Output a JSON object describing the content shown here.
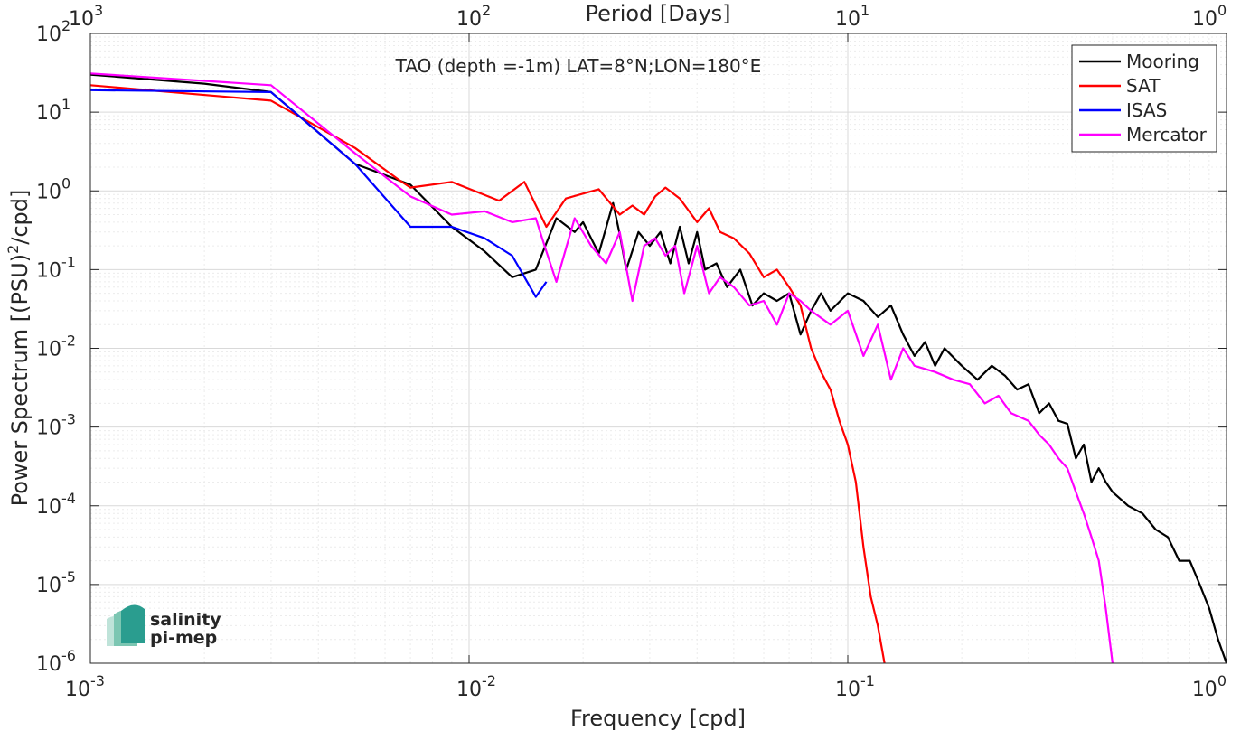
{
  "chart_data": {
    "type": "line",
    "title": "TAO (depth =-1m) LAT=8°N;LON=180°E",
    "xlabel": "Frequency [cpd]",
    "ylabel": "Power Spectrum [(PSU)",
    "ylabel_sup": "2",
    "ylabel_tail": "/cpd]",
    "top_xlabel": "Period [Days]",
    "xscale": "log",
    "yscale": "log",
    "xlim": [
      0.001,
      1
    ],
    "ylim": [
      1e-06,
      100
    ],
    "grid": true,
    "legend_position": "top-right",
    "x_ticks": [
      {
        "value": 0.001,
        "base": "10",
        "exp": "-3"
      },
      {
        "value": 0.01,
        "base": "10",
        "exp": "-2"
      },
      {
        "value": 0.1,
        "base": "10",
        "exp": "-1"
      },
      {
        "value": 1,
        "base": "10",
        "exp": "0"
      }
    ],
    "top_x_ticks": [
      {
        "value": 0.001,
        "base": "10",
        "exp": "3"
      },
      {
        "value": 0.01,
        "base": "10",
        "exp": "2"
      },
      {
        "value": 0.1,
        "base": "10",
        "exp": "1"
      },
      {
        "value": 1,
        "base": "10",
        "exp": "0"
      }
    ],
    "y_ticks": [
      {
        "value": 100,
        "base": "10",
        "exp": "2"
      },
      {
        "value": 10,
        "base": "10",
        "exp": "1"
      },
      {
        "value": 1,
        "base": "10",
        "exp": "0"
      },
      {
        "value": 0.1,
        "base": "10",
        "exp": "-1"
      },
      {
        "value": 0.01,
        "base": "10",
        "exp": "-2"
      },
      {
        "value": 0.001,
        "base": "10",
        "exp": "-3"
      },
      {
        "value": 0.0001,
        "base": "10",
        "exp": "-4"
      },
      {
        "value": 1e-05,
        "base": "10",
        "exp": "-5"
      },
      {
        "value": 1e-06,
        "base": "10",
        "exp": "-6"
      }
    ],
    "series": [
      {
        "name": "Mooring",
        "color": "#000000",
        "points": [
          [
            0.001,
            30
          ],
          [
            0.002,
            23
          ],
          [
            0.003,
            18
          ],
          [
            0.005,
            2.2
          ],
          [
            0.007,
            1.2
          ],
          [
            0.009,
            0.35
          ],
          [
            0.011,
            0.17
          ],
          [
            0.013,
            0.08
          ],
          [
            0.015,
            0.1
          ],
          [
            0.017,
            0.45
          ],
          [
            0.019,
            0.3
          ],
          [
            0.02,
            0.4
          ],
          [
            0.022,
            0.16
          ],
          [
            0.024,
            0.7
          ],
          [
            0.025,
            0.28
          ],
          [
            0.026,
            0.1
          ],
          [
            0.028,
            0.3
          ],
          [
            0.03,
            0.2
          ],
          [
            0.032,
            0.3
          ],
          [
            0.034,
            0.12
          ],
          [
            0.036,
            0.35
          ],
          [
            0.038,
            0.12
          ],
          [
            0.04,
            0.3
          ],
          [
            0.042,
            0.1
          ],
          [
            0.045,
            0.12
          ],
          [
            0.048,
            0.06
          ],
          [
            0.052,
            0.1
          ],
          [
            0.056,
            0.035
          ],
          [
            0.06,
            0.05
          ],
          [
            0.065,
            0.04
          ],
          [
            0.07,
            0.05
          ],
          [
            0.075,
            0.015
          ],
          [
            0.08,
            0.03
          ],
          [
            0.085,
            0.05
          ],
          [
            0.09,
            0.03
          ],
          [
            0.1,
            0.05
          ],
          [
            0.11,
            0.04
          ],
          [
            0.12,
            0.025
          ],
          [
            0.13,
            0.035
          ],
          [
            0.14,
            0.015
          ],
          [
            0.15,
            0.008
          ],
          [
            0.16,
            0.012
          ],
          [
            0.17,
            0.006
          ],
          [
            0.18,
            0.01
          ],
          [
            0.2,
            0.006
          ],
          [
            0.22,
            0.004
          ],
          [
            0.24,
            0.006
          ],
          [
            0.26,
            0.0045
          ],
          [
            0.28,
            0.003
          ],
          [
            0.3,
            0.0035
          ],
          [
            0.32,
            0.0015
          ],
          [
            0.34,
            0.002
          ],
          [
            0.36,
            0.0012
          ],
          [
            0.38,
            0.0011
          ],
          [
            0.4,
            0.0004
          ],
          [
            0.42,
            0.0006
          ],
          [
            0.44,
            0.0002
          ],
          [
            0.46,
            0.0003
          ],
          [
            0.48,
            0.0002
          ],
          [
            0.5,
            0.00015
          ],
          [
            0.55,
            0.0001
          ],
          [
            0.6,
            8e-05
          ],
          [
            0.65,
            5e-05
          ],
          [
            0.7,
            4e-05
          ],
          [
            0.75,
            2e-05
          ],
          [
            0.8,
            2e-05
          ],
          [
            0.85,
            1e-05
          ],
          [
            0.9,
            5e-06
          ],
          [
            0.95,
            2e-06
          ],
          [
            1.0,
            1e-06
          ]
        ]
      },
      {
        "name": "SAT",
        "color": "#ff0000",
        "points": [
          [
            0.001,
            22
          ],
          [
            0.003,
            14
          ],
          [
            0.005,
            3.5
          ],
          [
            0.0065,
            1.4
          ],
          [
            0.007,
            1.1
          ],
          [
            0.009,
            1.3
          ],
          [
            0.012,
            0.75
          ],
          [
            0.014,
            1.3
          ],
          [
            0.016,
            0.35
          ],
          [
            0.018,
            0.8
          ],
          [
            0.022,
            1.05
          ],
          [
            0.025,
            0.5
          ],
          [
            0.027,
            0.65
          ],
          [
            0.029,
            0.5
          ],
          [
            0.031,
            0.85
          ],
          [
            0.033,
            1.1
          ],
          [
            0.036,
            0.8
          ],
          [
            0.04,
            0.4
          ],
          [
            0.043,
            0.6
          ],
          [
            0.046,
            0.3
          ],
          [
            0.05,
            0.25
          ],
          [
            0.055,
            0.16
          ],
          [
            0.06,
            0.08
          ],
          [
            0.065,
            0.1
          ],
          [
            0.07,
            0.06
          ],
          [
            0.075,
            0.035
          ],
          [
            0.08,
            0.01
          ],
          [
            0.085,
            0.005
          ],
          [
            0.09,
            0.003
          ],
          [
            0.095,
            0.0012
          ],
          [
            0.1,
            0.0006
          ],
          [
            0.105,
            0.0002
          ],
          [
            0.11,
            3e-05
          ],
          [
            0.115,
            7e-06
          ],
          [
            0.12,
            3e-06
          ],
          [
            0.125,
            1e-06
          ]
        ]
      },
      {
        "name": "ISAS",
        "color": "#0000ff",
        "points": [
          [
            0.001,
            19
          ],
          [
            0.003,
            18
          ],
          [
            0.005,
            2.2
          ],
          [
            0.007,
            0.35
          ],
          [
            0.009,
            0.35
          ],
          [
            0.011,
            0.25
          ],
          [
            0.013,
            0.15
          ],
          [
            0.015,
            0.045
          ],
          [
            0.016,
            0.07
          ]
        ]
      },
      {
        "name": "Mercator",
        "color": "#ff00ff",
        "points": [
          [
            0.001,
            31
          ],
          [
            0.003,
            22
          ],
          [
            0.005,
            3
          ],
          [
            0.007,
            0.85
          ],
          [
            0.009,
            0.5
          ],
          [
            0.011,
            0.55
          ],
          [
            0.013,
            0.4
          ],
          [
            0.015,
            0.45
          ],
          [
            0.016,
            0.17
          ],
          [
            0.017,
            0.07
          ],
          [
            0.019,
            0.45
          ],
          [
            0.021,
            0.2
          ],
          [
            0.023,
            0.12
          ],
          [
            0.025,
            0.3
          ],
          [
            0.027,
            0.04
          ],
          [
            0.029,
            0.2
          ],
          [
            0.031,
            0.25
          ],
          [
            0.033,
            0.15
          ],
          [
            0.035,
            0.2
          ],
          [
            0.037,
            0.05
          ],
          [
            0.04,
            0.2
          ],
          [
            0.043,
            0.05
          ],
          [
            0.046,
            0.08
          ],
          [
            0.05,
            0.06
          ],
          [
            0.055,
            0.035
          ],
          [
            0.06,
            0.04
          ],
          [
            0.065,
            0.02
          ],
          [
            0.07,
            0.05
          ],
          [
            0.075,
            0.04
          ],
          [
            0.08,
            0.03
          ],
          [
            0.09,
            0.02
          ],
          [
            0.1,
            0.03
          ],
          [
            0.11,
            0.008
          ],
          [
            0.12,
            0.02
          ],
          [
            0.13,
            0.004
          ],
          [
            0.14,
            0.01
          ],
          [
            0.15,
            0.006
          ],
          [
            0.17,
            0.005
          ],
          [
            0.19,
            0.004
          ],
          [
            0.21,
            0.0035
          ],
          [
            0.23,
            0.002
          ],
          [
            0.25,
            0.0025
          ],
          [
            0.27,
            0.0015
          ],
          [
            0.3,
            0.0012
          ],
          [
            0.32,
            0.0008
          ],
          [
            0.34,
            0.0006
          ],
          [
            0.36,
            0.0004
          ],
          [
            0.38,
            0.0003
          ],
          [
            0.4,
            0.00015
          ],
          [
            0.42,
            8e-05
          ],
          [
            0.44,
            4e-05
          ],
          [
            0.46,
            2e-05
          ],
          [
            0.48,
            5e-06
          ],
          [
            0.5,
            1e-06
          ]
        ]
      }
    ]
  },
  "logo": {
    "line1": "salinity",
    "line2": "pi-mep"
  }
}
